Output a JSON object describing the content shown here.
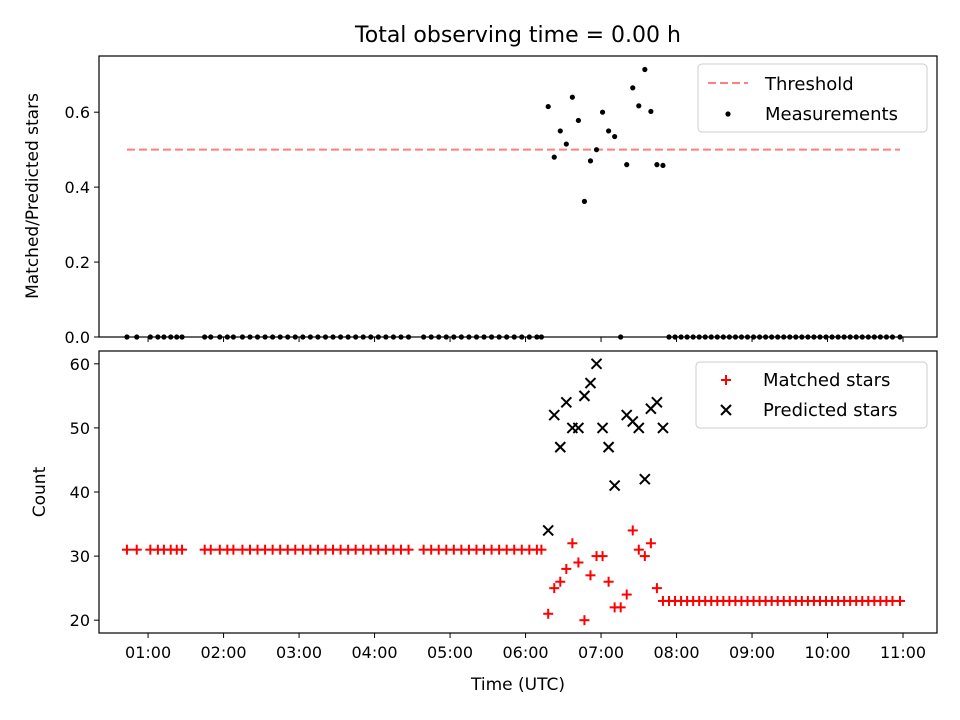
{
  "figure": {
    "title": "Total observing time = 0.00 h"
  },
  "chart_data": [
    {
      "type": "scatter",
      "title": "Total observing time = 0.00 h",
      "xlabel": "",
      "ylabel": "Matched/Predicted stars",
      "xlim": [
        0.35,
        11.45
      ],
      "ylim": [
        0,
        0.75
      ],
      "yticks": [
        0.0,
        0.2,
        0.4,
        0.6
      ],
      "ytick_labels": [
        "0.0",
        "0.2",
        "0.4",
        "0.6"
      ],
      "legend_position": "top-right",
      "colors": {
        "threshold": "#ff7f7f",
        "measurements": "#000000"
      },
      "series": [
        {
          "name": "Threshold",
          "kind": "line",
          "style": "dashed",
          "x": [
            0.72,
            10.96
          ],
          "y": [
            0.5,
            0.5
          ]
        },
        {
          "name": "Measurements",
          "kind": "scatter",
          "x": [
            0.72,
            0.85,
            1.03,
            1.13,
            1.21,
            1.3,
            1.38,
            1.45,
            1.75,
            1.83,
            1.95,
            2.05,
            2.13,
            2.25,
            2.35,
            2.45,
            2.55,
            2.65,
            2.75,
            2.85,
            2.95,
            3.05,
            3.15,
            3.25,
            3.35,
            3.45,
            3.55,
            3.65,
            3.75,
            3.85,
            3.95,
            4.05,
            4.15,
            4.25,
            4.35,
            4.45,
            4.65,
            4.75,
            4.85,
            4.95,
            5.05,
            5.15,
            5.25,
            5.35,
            5.45,
            5.55,
            5.65,
            5.75,
            5.85,
            5.95,
            6.05,
            6.15,
            6.21,
            6.3,
            6.38,
            6.46,
            6.54,
            6.62,
            6.7,
            6.78,
            6.86,
            6.94,
            7.02,
            7.1,
            7.18,
            7.26,
            7.34,
            7.42,
            7.5,
            7.58,
            7.66,
            7.74,
            7.82,
            7.9,
            7.98,
            8.06,
            8.14,
            8.22,
            8.3,
            8.38,
            8.46,
            8.54,
            8.62,
            8.7,
            8.78,
            8.86,
            8.94,
            9.02,
            9.1,
            9.18,
            9.26,
            9.34,
            9.42,
            9.5,
            9.58,
            9.66,
            9.74,
            9.82,
            9.9,
            9.98,
            10.06,
            10.14,
            10.22,
            10.3,
            10.38,
            10.46,
            10.54,
            10.62,
            10.7,
            10.78,
            10.86,
            10.96
          ],
          "y": [
            0,
            0,
            0,
            0,
            0,
            0,
            0,
            0,
            0,
            0,
            0,
            0,
            0,
            0,
            0,
            0,
            0,
            0,
            0,
            0,
            0,
            0,
            0,
            0,
            0,
            0,
            0,
            0,
            0,
            0,
            0,
            0,
            0,
            0,
            0,
            0,
            0,
            0,
            0,
            0,
            0,
            0,
            0,
            0,
            0,
            0,
            0,
            0,
            0,
            0,
            0,
            0,
            0,
            0.615,
            0.48,
            0.55,
            0.515,
            0.64,
            0.578,
            0.362,
            0.47,
            0.5,
            0.6,
            0.55,
            0.535,
            0,
            0.46,
            0.665,
            0.617,
            0.714,
            0.602,
            0.46,
            0.458,
            0,
            0,
            0,
            0,
            0,
            0,
            0,
            0,
            0,
            0,
            0,
            0,
            0,
            0,
            0,
            0,
            0,
            0,
            0,
            0,
            0,
            0,
            0,
            0,
            0,
            0,
            0,
            0,
            0,
            0,
            0,
            0,
            0,
            0,
            0,
            0,
            0,
            0,
            0
          ]
        }
      ]
    },
    {
      "type": "scatter",
      "title": "",
      "xlabel": "Time (UTC)",
      "ylabel": "Count",
      "xlim": [
        0.35,
        11.45
      ],
      "ylim": [
        18,
        62
      ],
      "xticks": [
        1,
        2,
        3,
        4,
        5,
        6,
        7,
        8,
        9,
        10,
        11
      ],
      "xtick_labels": [
        "01:00",
        "02:00",
        "03:00",
        "04:00",
        "05:00",
        "06:00",
        "07:00",
        "08:00",
        "09:00",
        "10:00",
        "11:00"
      ],
      "yticks": [
        20,
        30,
        40,
        50,
        60
      ],
      "ytick_labels": [
        "20",
        "30",
        "40",
        "50",
        "60"
      ],
      "legend_position": "top-right",
      "colors": {
        "matched": "#ff0000",
        "predicted": "#000000"
      },
      "series": [
        {
          "name": "Matched stars",
          "marker": "plus",
          "x": [
            0.72,
            0.85,
            1.03,
            1.13,
            1.21,
            1.3,
            1.38,
            1.45,
            1.75,
            1.83,
            1.95,
            2.05,
            2.13,
            2.25,
            2.35,
            2.45,
            2.55,
            2.65,
            2.75,
            2.85,
            2.95,
            3.05,
            3.15,
            3.25,
            3.35,
            3.45,
            3.55,
            3.65,
            3.75,
            3.85,
            3.95,
            4.05,
            4.15,
            4.25,
            4.35,
            4.45,
            4.65,
            4.75,
            4.85,
            4.95,
            5.05,
            5.15,
            5.25,
            5.35,
            5.45,
            5.55,
            5.65,
            5.75,
            5.85,
            5.95,
            6.05,
            6.15,
            6.21,
            6.3,
            6.38,
            6.46,
            6.54,
            6.62,
            6.7,
            6.78,
            6.86,
            6.94,
            7.02,
            7.1,
            7.18,
            7.26,
            7.34,
            7.42,
            7.5,
            7.58,
            7.66,
            7.74,
            7.82,
            7.9,
            7.98,
            8.06,
            8.14,
            8.22,
            8.3,
            8.38,
            8.46,
            8.54,
            8.62,
            8.7,
            8.78,
            8.86,
            8.94,
            9.02,
            9.1,
            9.18,
            9.26,
            9.34,
            9.42,
            9.5,
            9.58,
            9.66,
            9.74,
            9.82,
            9.9,
            9.98,
            10.06,
            10.14,
            10.22,
            10.3,
            10.38,
            10.46,
            10.54,
            10.62,
            10.7,
            10.78,
            10.86,
            10.96
          ],
          "y": [
            31,
            31,
            31,
            31,
            31,
            31,
            31,
            31,
            31,
            31,
            31,
            31,
            31,
            31,
            31,
            31,
            31,
            31,
            31,
            31,
            31,
            31,
            31,
            31,
            31,
            31,
            31,
            31,
            31,
            31,
            31,
            31,
            31,
            31,
            31,
            31,
            31,
            31,
            31,
            31,
            31,
            31,
            31,
            31,
            31,
            31,
            31,
            31,
            31,
            31,
            31,
            31,
            31,
            21,
            25,
            26,
            28,
            32,
            29,
            20,
            27,
            30,
            30,
            26,
            22,
            22,
            24,
            34,
            31,
            30,
            32,
            25,
            23,
            23,
            23,
            23,
            23,
            23,
            23,
            23,
            23,
            23,
            23,
            23,
            23,
            23,
            23,
            23,
            23,
            23,
            23,
            23,
            23,
            23,
            23,
            23,
            23,
            23,
            23,
            23,
            23,
            23,
            23,
            23,
            23,
            23,
            23,
            23,
            23,
            23,
            23,
            23
          ]
        },
        {
          "name": "Predicted stars",
          "marker": "x",
          "x": [
            6.3,
            6.38,
            6.46,
            6.54,
            6.62,
            6.7,
            6.78,
            6.86,
            6.94,
            7.02,
            7.1,
            7.18,
            7.34,
            7.42,
            7.5,
            7.58,
            7.66,
            7.74,
            7.82
          ],
          "y": [
            34,
            52,
            47,
            54,
            50,
            50,
            55,
            57,
            60,
            50,
            47,
            41,
            52,
            51,
            50,
            42,
            53,
            54,
            50
          ]
        }
      ]
    }
  ]
}
